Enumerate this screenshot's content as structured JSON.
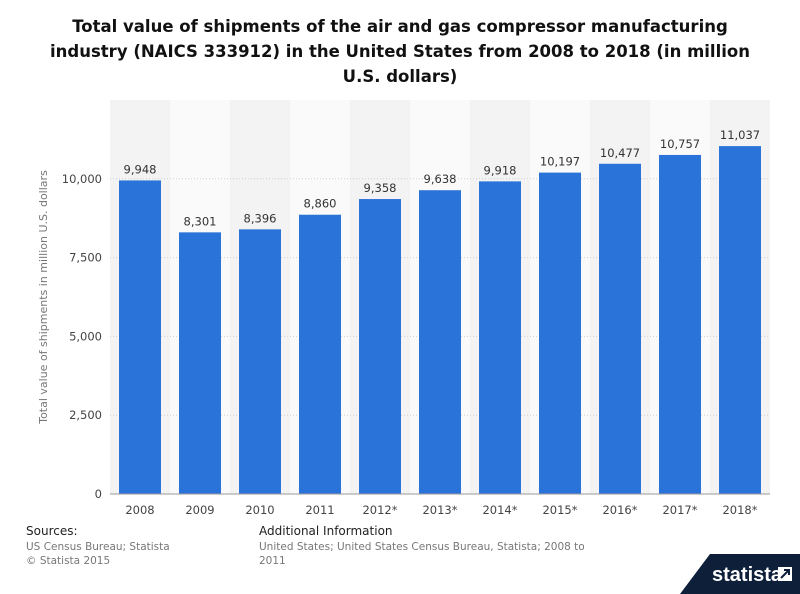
{
  "title": "Total value of shipments of the air and gas compressor manufacturing industry (NAICS 333912) in the United States from 2008 to 2018 (in million U.S. dollars)",
  "chart_data": {
    "type": "bar",
    "categories": [
      "2008",
      "2009",
      "2010",
      "2011",
      "2012*",
      "2013*",
      "2014*",
      "2015*",
      "2016*",
      "2017*",
      "2018*"
    ],
    "values": [
      9948,
      8301,
      8396,
      8860,
      9358,
      9638,
      9918,
      10197,
      10477,
      10757,
      11037
    ],
    "value_labels": [
      "9,948",
      "8,301",
      "8,396",
      "8,860",
      "9,358",
      "9,638",
      "9,918",
      "10,197",
      "10,477",
      "10,757",
      "11,037"
    ],
    "ylabel": "Total value of shipments in million U.S. dollars",
    "ylim": [
      0,
      12500
    ],
    "yticks": [
      0,
      2500,
      5000,
      7500,
      10000
    ],
    "ytick_labels": [
      "0",
      "2,500",
      "5,000",
      "7,500",
      "10,000"
    ],
    "bar_color": "#2a73d9",
    "grid": true,
    "legend": "none"
  },
  "footer": {
    "sources_label": "Sources:",
    "sources_line1": "US Census Bureau; Statista",
    "sources_line2": "© Statista 2015",
    "additional_label": "Additional Information",
    "additional_line1": "United States; United States Census Bureau, Statista; 2008 to",
    "additional_line2": "2011"
  },
  "logo": {
    "text": "statista",
    "color": "#0e1f3a",
    "icon": "statista-arrow-icon"
  }
}
